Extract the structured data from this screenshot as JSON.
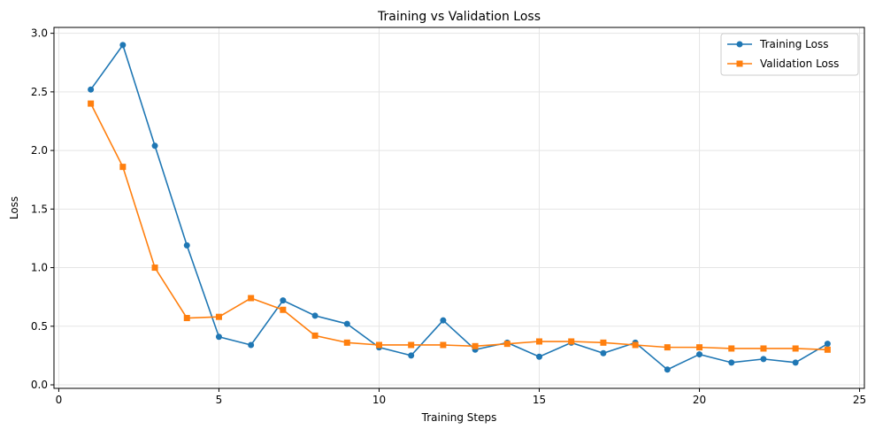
{
  "chart_data": {
    "type": "line",
    "title": "Training vs Validation Loss",
    "xlabel": "Training Steps",
    "ylabel": "Loss",
    "xlim": [
      -0.15,
      25.15
    ],
    "ylim": [
      -0.03,
      3.05
    ],
    "xticks": [
      0,
      5,
      10,
      15,
      20,
      25
    ],
    "yticks": [
      0.0,
      0.5,
      1.0,
      1.5,
      2.0,
      2.5,
      3.0
    ],
    "xtick_labels": [
      "0",
      "5",
      "10",
      "15",
      "20",
      "25"
    ],
    "ytick_labels": [
      "0.0",
      "0.5",
      "1.0",
      "1.5",
      "2.0",
      "2.5",
      "3.0"
    ],
    "grid": true,
    "legend_placement": "top-right",
    "x": [
      1,
      2,
      3,
      4,
      5,
      6,
      7,
      8,
      9,
      10,
      11,
      12,
      13,
      14,
      15,
      16,
      17,
      18,
      19,
      20,
      21,
      22,
      23,
      24
    ],
    "series": [
      {
        "name": "Training Loss",
        "color": "#1f77b4",
        "marker": "circle",
        "values": [
          2.52,
          2.9,
          2.04,
          1.19,
          0.41,
          0.34,
          0.72,
          0.59,
          0.52,
          0.32,
          0.25,
          0.55,
          0.3,
          0.36,
          0.24,
          0.36,
          0.27,
          0.36,
          0.13,
          0.26,
          0.19,
          0.22,
          0.19,
          0.35
        ]
      },
      {
        "name": "Validation Loss",
        "color": "#ff7f0e",
        "marker": "square",
        "values": [
          2.4,
          1.86,
          1.0,
          0.57,
          0.58,
          0.74,
          0.64,
          0.42,
          0.36,
          0.34,
          0.34,
          0.34,
          0.33,
          0.35,
          0.37,
          0.37,
          0.36,
          0.34,
          0.32,
          0.32,
          0.31,
          0.31,
          0.31,
          0.3
        ]
      }
    ]
  }
}
